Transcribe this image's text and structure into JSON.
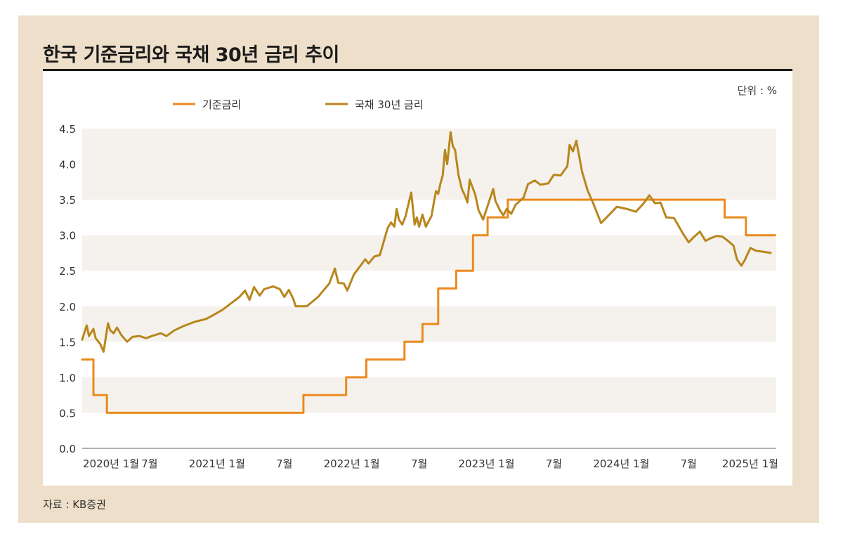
{
  "title": "한국 기준금리와 국채 30년 금리 추이",
  "source": "자료 : KB증권",
  "chart_data": {
    "type": "line",
    "unit_label": "단위 : %",
    "ylim": [
      0,
      4.5
    ],
    "yticks": [
      "0.0",
      "0.5",
      "1.0",
      "1.5",
      "2.0",
      "2.5",
      "3.0",
      "3.5",
      "4.0",
      "4.5"
    ],
    "x_range": [
      "2020-01",
      "2025-04"
    ],
    "xticks": [
      {
        "label": "2020년 1월",
        "t": 0
      },
      {
        "label": "7월",
        "t": 6
      },
      {
        "label": "2021년 1월",
        "t": 12
      },
      {
        "label": "7월",
        "t": 18
      },
      {
        "label": "2022년 1월",
        "t": 24
      },
      {
        "label": "7월",
        "t": 30
      },
      {
        "label": "2023년 1월",
        "t": 36
      },
      {
        "label": "7월",
        "t": 42
      },
      {
        "label": "2024년 1월",
        "t": 48
      },
      {
        "label": "7월",
        "t": 54
      },
      {
        "label": "2025년 1월",
        "t": 60
      }
    ],
    "grid": "horizontal bands",
    "legend_position": "top",
    "series": [
      {
        "name": "기준금리",
        "color": "#ec8a1e",
        "step": true,
        "points": [
          [
            0,
            1.25
          ],
          [
            1.0,
            1.25
          ],
          [
            1.0,
            0.75
          ],
          [
            2.2,
            0.75
          ],
          [
            2.2,
            0.5
          ],
          [
            19.7,
            0.5
          ],
          [
            19.7,
            0.75
          ],
          [
            23.5,
            0.75
          ],
          [
            23.5,
            1.0
          ],
          [
            25.3,
            1.0
          ],
          [
            25.3,
            1.25
          ],
          [
            28.7,
            1.25
          ],
          [
            28.7,
            1.5
          ],
          [
            30.3,
            1.5
          ],
          [
            30.3,
            1.75
          ],
          [
            31.7,
            1.75
          ],
          [
            31.7,
            2.25
          ],
          [
            33.3,
            2.25
          ],
          [
            33.3,
            2.5
          ],
          [
            34.8,
            2.5
          ],
          [
            34.8,
            3.0
          ],
          [
            36.1,
            3.0
          ],
          [
            36.1,
            3.25
          ],
          [
            37.9,
            3.25
          ],
          [
            37.9,
            3.5
          ],
          [
            57.2,
            3.5
          ],
          [
            57.2,
            3.25
          ],
          [
            59.1,
            3.25
          ],
          [
            59.1,
            3.0
          ],
          [
            61.7,
            3.0
          ]
        ]
      },
      {
        "name": "국채 30년 금리",
        "color": "#b8861c",
        "step": false,
        "points": [
          [
            0,
            1.53
          ],
          [
            0.4,
            1.73
          ],
          [
            0.6,
            1.58
          ],
          [
            1.0,
            1.68
          ],
          [
            1.2,
            1.55
          ],
          [
            1.6,
            1.47
          ],
          [
            1.9,
            1.36
          ],
          [
            2.3,
            1.76
          ],
          [
            2.5,
            1.66
          ],
          [
            2.8,
            1.62
          ],
          [
            3.1,
            1.7
          ],
          [
            3.5,
            1.59
          ],
          [
            4.0,
            1.5
          ],
          [
            4.5,
            1.57
          ],
          [
            5.1,
            1.58
          ],
          [
            5.7,
            1.55
          ],
          [
            6.2,
            1.58
          ],
          [
            7.0,
            1.62
          ],
          [
            7.5,
            1.58
          ],
          [
            8.2,
            1.66
          ],
          [
            9.0,
            1.72
          ],
          [
            10.0,
            1.78
          ],
          [
            11.0,
            1.82
          ],
          [
            11.5,
            1.86
          ],
          [
            12.5,
            1.95
          ],
          [
            14.0,
            2.13
          ],
          [
            14.5,
            2.22
          ],
          [
            14.9,
            2.09
          ],
          [
            15.3,
            2.27
          ],
          [
            15.8,
            2.15
          ],
          [
            16.2,
            2.24
          ],
          [
            17.0,
            2.28
          ],
          [
            17.6,
            2.24
          ],
          [
            18.0,
            2.13
          ],
          [
            18.4,
            2.23
          ],
          [
            18.8,
            2.1
          ],
          [
            19.0,
            2.0
          ],
          [
            20.0,
            2.0
          ],
          [
            21.0,
            2.13
          ],
          [
            22.0,
            2.32
          ],
          [
            22.5,
            2.53
          ],
          [
            22.8,
            2.33
          ],
          [
            23.3,
            2.32
          ],
          [
            23.6,
            2.22
          ],
          [
            24.2,
            2.45
          ],
          [
            25.2,
            2.66
          ],
          [
            25.5,
            2.6
          ],
          [
            26.0,
            2.7
          ],
          [
            26.5,
            2.72
          ],
          [
            27.2,
            3.1
          ],
          [
            27.5,
            3.18
          ],
          [
            27.8,
            3.12
          ],
          [
            28.0,
            3.37
          ],
          [
            28.2,
            3.22
          ],
          [
            28.5,
            3.15
          ],
          [
            28.8,
            3.27
          ],
          [
            29.3,
            3.6
          ],
          [
            29.6,
            3.15
          ],
          [
            29.8,
            3.25
          ],
          [
            30.0,
            3.12
          ],
          [
            30.3,
            3.29
          ],
          [
            30.6,
            3.12
          ],
          [
            31.1,
            3.27
          ],
          [
            31.3,
            3.45
          ],
          [
            31.5,
            3.62
          ],
          [
            31.7,
            3.58
          ],
          [
            31.9,
            3.73
          ],
          [
            32.1,
            3.84
          ],
          [
            32.3,
            4.2
          ],
          [
            32.5,
            4.0
          ],
          [
            32.8,
            4.45
          ],
          [
            33.0,
            4.25
          ],
          [
            33.2,
            4.2
          ],
          [
            33.5,
            3.85
          ],
          [
            33.8,
            3.65
          ],
          [
            34.1,
            3.55
          ],
          [
            34.3,
            3.46
          ],
          [
            34.5,
            3.78
          ],
          [
            35.0,
            3.57
          ],
          [
            35.3,
            3.35
          ],
          [
            35.7,
            3.22
          ],
          [
            36.2,
            3.46
          ],
          [
            36.6,
            3.65
          ],
          [
            36.8,
            3.48
          ],
          [
            37.2,
            3.35
          ],
          [
            37.5,
            3.28
          ],
          [
            37.8,
            3.37
          ],
          [
            38.2,
            3.3
          ],
          [
            38.6,
            3.43
          ],
          [
            39.3,
            3.53
          ],
          [
            39.7,
            3.72
          ],
          [
            40.3,
            3.77
          ],
          [
            40.8,
            3.71
          ],
          [
            41.5,
            3.73
          ],
          [
            42.0,
            3.85
          ],
          [
            42.6,
            3.84
          ],
          [
            43.2,
            3.97
          ],
          [
            43.4,
            4.27
          ],
          [
            43.7,
            4.18
          ],
          [
            44.0,
            4.33
          ],
          [
            44.5,
            3.9
          ],
          [
            45.0,
            3.63
          ],
          [
            45.5,
            3.45
          ],
          [
            46.2,
            3.17
          ],
          [
            47.0,
            3.3
          ],
          [
            47.6,
            3.4
          ],
          [
            48.5,
            3.37
          ],
          [
            49.3,
            3.33
          ],
          [
            50.0,
            3.45
          ],
          [
            50.5,
            3.56
          ],
          [
            51.0,
            3.45
          ],
          [
            51.5,
            3.46
          ],
          [
            52.0,
            3.25
          ],
          [
            52.7,
            3.24
          ],
          [
            53.5,
            3.02
          ],
          [
            54.0,
            2.9
          ],
          [
            54.5,
            2.98
          ],
          [
            55.0,
            3.05
          ],
          [
            55.5,
            2.92
          ],
          [
            56.0,
            2.96
          ],
          [
            56.5,
            2.99
          ],
          [
            57.0,
            2.98
          ],
          [
            57.5,
            2.92
          ],
          [
            58.0,
            2.85
          ],
          [
            58.3,
            2.66
          ],
          [
            58.7,
            2.57
          ],
          [
            59.0,
            2.65
          ],
          [
            59.5,
            2.82
          ],
          [
            60.0,
            2.78
          ],
          [
            60.5,
            2.77
          ],
          [
            61.3,
            2.75
          ]
        ]
      }
    ]
  }
}
